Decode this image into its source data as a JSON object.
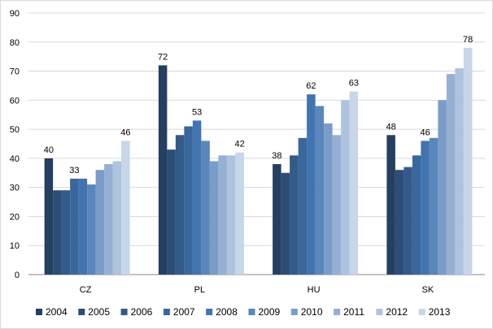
{
  "chart_data": {
    "type": "bar",
    "title": "",
    "xlabel": "",
    "ylabel": "",
    "ylim": [
      0,
      90
    ],
    "yticks": [
      0,
      10,
      20,
      30,
      40,
      50,
      60,
      70,
      80,
      90
    ],
    "grid": true,
    "legend_position": "bottom",
    "categories": [
      "CZ",
      "PL",
      "HU",
      "SK"
    ],
    "series": [
      {
        "name": "2004",
        "color": "#243f60",
        "values": [
          40,
          72,
          38,
          48
        ]
      },
      {
        "name": "2005",
        "color": "#2c4d75",
        "values": [
          29,
          43,
          35,
          36
        ]
      },
      {
        "name": "2006",
        "color": "#335a88",
        "values": [
          29,
          48,
          41,
          37
        ]
      },
      {
        "name": "2007",
        "color": "#3a679c",
        "values": [
          33,
          51,
          47,
          41
        ]
      },
      {
        "name": "2008",
        "color": "#4274b0",
        "values": [
          33,
          53,
          62,
          46
        ]
      },
      {
        "name": "2009",
        "color": "#5b86bb",
        "values": [
          31,
          46,
          58,
          47
        ]
      },
      {
        "name": "2010",
        "color": "#7a9cc8",
        "values": [
          36,
          39,
          52,
          60
        ]
      },
      {
        "name": "2011",
        "color": "#95b0d3",
        "values": [
          38,
          41,
          48,
          69
        ]
      },
      {
        "name": "2012",
        "color": "#aec3de",
        "values": [
          39,
          41,
          60,
          71
        ]
      },
      {
        "name": "2013",
        "color": "#c8d6e9",
        "values": [
          46,
          42,
          63,
          78
        ]
      }
    ],
    "data_labels": [
      {
        "category": 0,
        "series": 0,
        "text": "40"
      },
      {
        "category": 0,
        "series": 3,
        "text": "33"
      },
      {
        "category": 0,
        "series": 9,
        "text": "46"
      },
      {
        "category": 1,
        "series": 0,
        "text": "72"
      },
      {
        "category": 1,
        "series": 4,
        "text": "53"
      },
      {
        "category": 1,
        "series": 9,
        "text": "42"
      },
      {
        "category": 2,
        "series": 0,
        "text": "38"
      },
      {
        "category": 2,
        "series": 4,
        "text": "62"
      },
      {
        "category": 2,
        "series": 9,
        "text": "63"
      },
      {
        "category": 3,
        "series": 0,
        "text": "48"
      },
      {
        "category": 3,
        "series": 4,
        "text": "46"
      },
      {
        "category": 3,
        "series": 9,
        "text": "78"
      }
    ]
  }
}
